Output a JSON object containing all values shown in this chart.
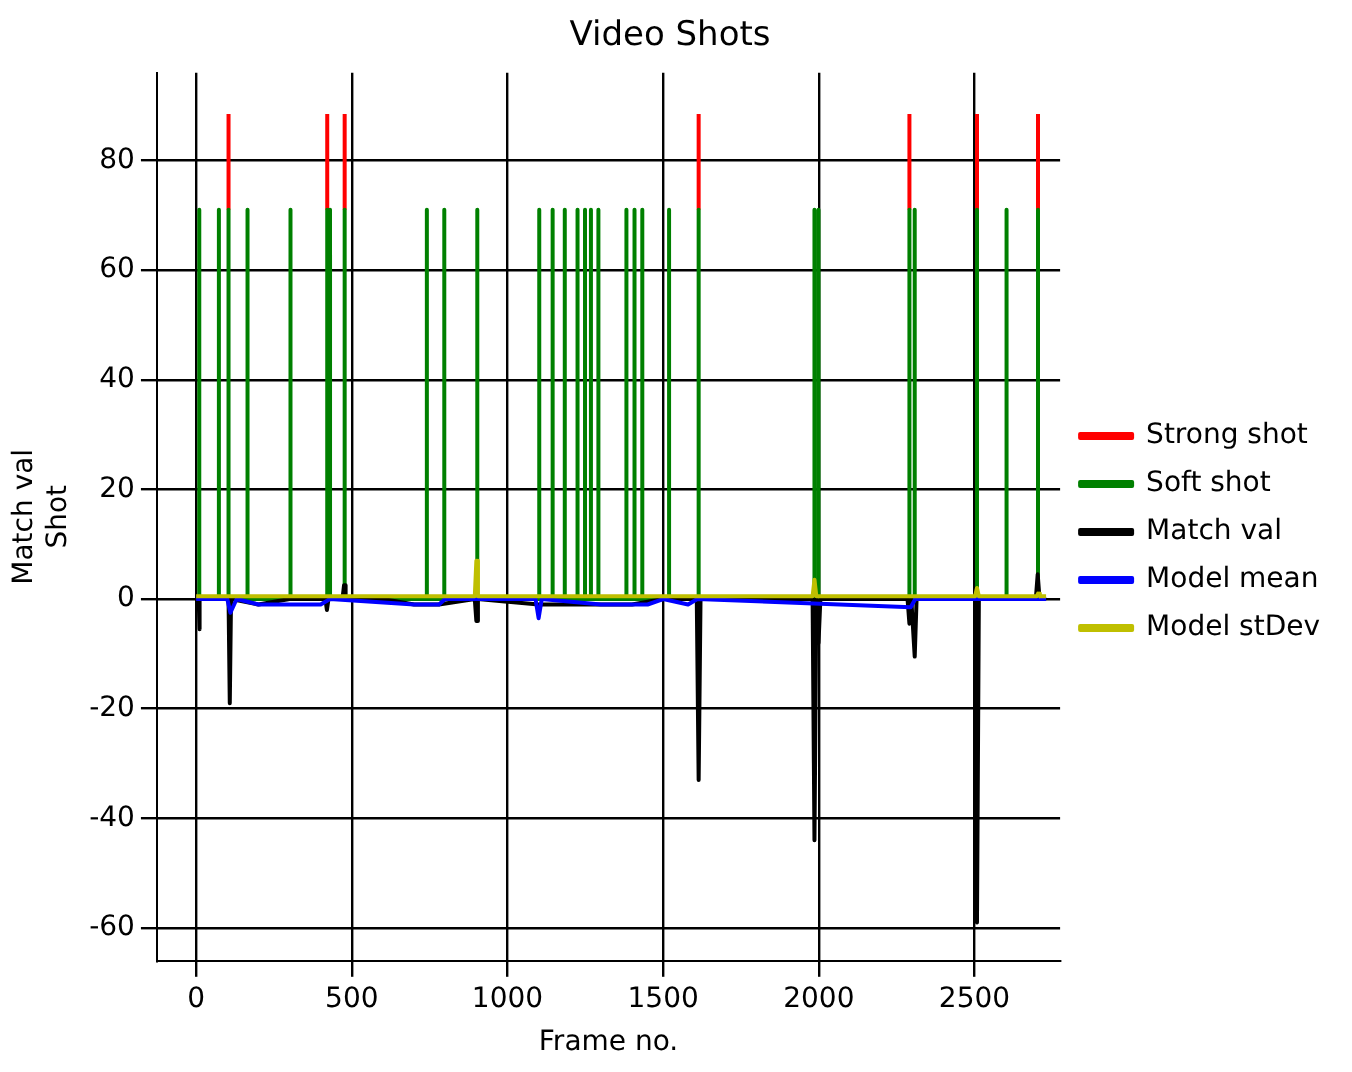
{
  "chart_data": {
    "type": "line",
    "title": "Video Shots",
    "xlabel": "Frame no.",
    "ylabel": "Match val\nShot",
    "xlim": [
      -126,
      2775
    ],
    "ylim": [
      -66,
      96
    ],
    "xticks": [
      0,
      500,
      1000,
      1500,
      2000,
      2500
    ],
    "yticks": [
      -60,
      -40,
      -20,
      0,
      20,
      40,
      60,
      80
    ],
    "grid": true,
    "legend": "right",
    "series": [
      {
        "name": "Strong shot",
        "color": "#ff0000",
        "x": [
          104,
          104,
          null,
          421,
          421,
          null,
          477,
          477,
          null,
          1614,
          1614,
          null,
          2291,
          2291,
          null,
          2508,
          2508,
          null,
          2704,
          2704,
          null
        ],
        "values": [
          71,
          88.5,
          null,
          71,
          88.5,
          null,
          71,
          88.5,
          null,
          71,
          88.5,
          null,
          71,
          88.5,
          null,
          71,
          88.5,
          null,
          71,
          88.5,
          null
        ]
      },
      {
        "name": "Soft shot",
        "color": "#008000",
        "x": [
          10,
          10,
          10,
          73,
          73,
          73,
          104,
          104,
          104,
          165,
          165,
          165,
          303,
          303,
          303,
          421,
          421,
          421,
          430,
          430,
          430,
          477,
          477,
          477,
          741,
          741,
          741,
          797,
          797,
          797,
          903,
          903,
          903,
          1102,
          1102,
          1102,
          1145,
          1145,
          1145,
          1184,
          1184,
          1184,
          1225,
          1225,
          1225,
          1249,
          1249,
          1249,
          1268,
          1268,
          1268,
          1292,
          1292,
          1292,
          1382,
          1382,
          1382,
          1408,
          1408,
          1408,
          1433,
          1433,
          1433,
          1519,
          1519,
          1519,
          1614,
          1614,
          1614,
          1986,
          1986,
          1986,
          1999,
          1999,
          1999,
          2291,
          2291,
          2291,
          2308,
          2308,
          2308,
          2508,
          2508,
          2508,
          2603,
          2603,
          2603,
          2704,
          2704,
          2704
        ],
        "values": [
          0,
          71,
          0,
          0,
          71,
          0,
          0,
          71,
          0,
          0,
          71,
          0,
          0,
          71,
          0,
          0,
          71,
          0,
          0,
          71,
          0,
          0,
          71,
          0,
          0,
          71,
          0,
          0,
          71,
          0,
          0,
          71,
          0,
          0,
          71,
          0,
          0,
          71,
          0,
          0,
          71,
          0,
          0,
          71,
          0,
          0,
          71,
          0,
          0,
          71,
          0,
          0,
          71,
          0,
          0,
          71,
          0,
          0,
          71,
          0,
          0,
          71,
          0,
          0,
          71,
          0,
          0,
          71,
          0,
          0,
          71,
          0,
          0,
          71,
          0,
          0,
          71,
          0,
          0,
          71,
          0,
          0,
          71,
          0,
          0,
          71,
          0,
          0,
          71,
          0
        ]
      },
      {
        "name": "Match val",
        "color": "#000000",
        "x": [
          0,
          8,
          10,
          12,
          104,
          108,
          112,
          200,
          300,
          415,
          420,
          425,
          470,
          475,
          480,
          600,
          700,
          780,
          895,
          900,
          905,
          1100,
          1200,
          1300,
          1400,
          1500,
          1608,
          1614,
          1620,
          1980,
          1986,
          1992,
          1999,
          2005,
          2200,
          2285,
          2291,
          2297,
          2308,
          2314,
          2502,
          2508,
          2514,
          2697,
          2703,
          2709,
          2730
        ],
        "values": [
          0,
          0,
          -5.5,
          0,
          0,
          -19,
          0,
          -1,
          0,
          0,
          -2,
          0,
          0,
          2.5,
          0,
          0,
          -1,
          -1,
          0,
          -4,
          0,
          -1,
          -1,
          -1,
          -1,
          0,
          0,
          -33,
          0,
          0,
          -44,
          0,
          -8,
          0,
          0,
          0,
          -4.5,
          0,
          -10.5,
          0,
          0,
          -59,
          0,
          0,
          4.5,
          0,
          0
        ]
      },
      {
        "name": "Model mean",
        "color": "#0000ff",
        "x": [
          0,
          100,
          110,
          130,
          200,
          400,
          430,
          700,
          780,
          800,
          1090,
          1100,
          1110,
          1300,
          1450,
          1500,
          1580,
          1610,
          2295,
          2310,
          2730
        ],
        "values": [
          0,
          0,
          -2.5,
          0,
          -1,
          -1,
          0,
          -1,
          -1,
          0,
          0,
          -3.5,
          0,
          -1,
          -1,
          0,
          -1,
          0,
          -1.5,
          0,
          0
        ]
      },
      {
        "name": "Model stDev",
        "color": "#bfbf00",
        "x": [
          0,
          895,
          900,
          905,
          1980,
          1986,
          1992,
          2502,
          2508,
          2514,
          2700,
          2704,
          2710,
          2730
        ],
        "values": [
          0.5,
          0.5,
          7,
          0.5,
          0.5,
          3.5,
          0.5,
          0.5,
          2,
          0.5,
          0.5,
          1,
          0.5,
          0.5
        ]
      }
    ]
  }
}
